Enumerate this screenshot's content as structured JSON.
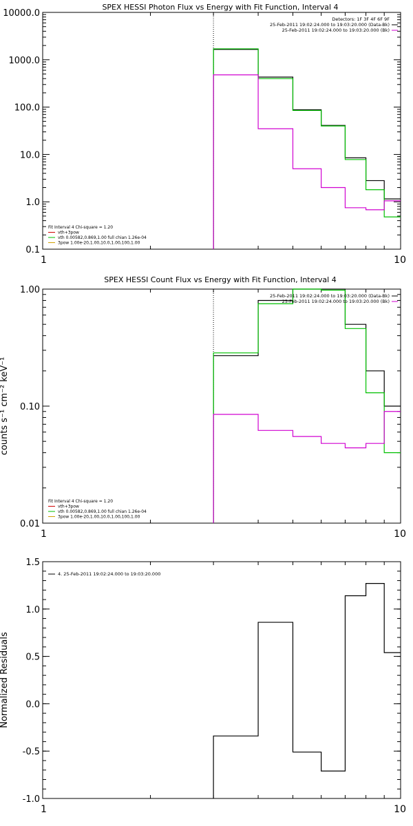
{
  "chart_data": [
    {
      "type": "line",
      "title": "SPEX HESSI Photon Flux vs Energy with Fit Function, Interval 4",
      "xlabel": "",
      "ylabel": "",
      "xscale": "log",
      "yscale": "log",
      "xlim": [
        1,
        10
      ],
      "ylim": [
        0.1,
        10000
      ],
      "xticks": [
        "1",
        "10"
      ],
      "yticks": [
        "0.1",
        "1.0",
        "10.0",
        "100.0",
        "1000.0",
        "10000.0"
      ],
      "vline_x": 3,
      "bin_edges": [
        3,
        4,
        5,
        6,
        7,
        8,
        9,
        10
      ],
      "series": [
        {
          "color": "#000000",
          "values": [
            1650,
            430,
            88,
            41,
            8.5,
            2.8,
            1.15
          ]
        },
        {
          "color": "#00c000",
          "values": [
            1700,
            400,
            85,
            40,
            7.8,
            1.8,
            0.48
          ]
        },
        {
          "color": "#d000d0",
          "values": [
            480,
            35,
            5,
            2,
            0.75,
            0.68,
            1.05
          ]
        }
      ],
      "legend_right": [
        {
          "text": "Detectors: 1F 3F 4F 6F 9F",
          "color": "#000000"
        },
        {
          "text": "25-Feb-2011 19:02:24.000 to 19:03:20.000 (Data-Bk)",
          "color": "#000000"
        },
        {
          "text": "25-Feb-2011 19:02:24.000 to 19:03:20.000 (Bk)",
          "color": "#d000d0"
        }
      ],
      "legend_left": [
        {
          "text": "Fit Interval  4   Chi-square = 1.20",
          "color": "#000000"
        },
        {
          "text": "vth+3pow",
          "color": "#d00000"
        },
        {
          "text": "vth 0.00582,0.869,1.00   full chian 1.26e-04",
          "color": "#00c000"
        },
        {
          "text": "3pow 1.00e-20,1.00,10.0,1.00,100,1.00",
          "color": "#d0a000"
        }
      ]
    },
    {
      "type": "line",
      "title": "SPEX HESSI Count Flux vs Energy with Fit Function, Interval 4",
      "xlabel": "",
      "ylabel": "counts s⁻¹ cm⁻² keV⁻¹",
      "xscale": "log",
      "yscale": "log",
      "xlim": [
        1,
        10
      ],
      "ylim": [
        0.01,
        1
      ],
      "xticks": [
        "1",
        "10"
      ],
      "yticks": [
        "0.01",
        "0.10",
        "1.00"
      ],
      "vline_x": 3,
      "bin_edges": [
        3,
        4,
        5,
        6,
        7,
        8,
        9,
        10
      ],
      "series": [
        {
          "color": "#000000",
          "values": [
            0.27,
            0.8,
            1.05,
            1.0,
            0.5,
            0.2,
            0.1
          ]
        },
        {
          "color": "#00c000",
          "values": [
            0.285,
            0.75,
            1.02,
            0.98,
            0.46,
            0.13,
            0.04
          ]
        },
        {
          "color": "#d000d0",
          "values": [
            0.085,
            0.062,
            0.055,
            0.048,
            0.044,
            0.048,
            0.09
          ]
        }
      ],
      "legend_right": [
        {
          "text": "25-Feb-2011 19:02:24.000 to 19:03:20.000 (Data-Bk)",
          "color": "#000000"
        },
        {
          "text": "25-Feb-2011 19:02:24.000 to 19:03:20.000 (Bk)",
          "color": "#d000d0"
        }
      ],
      "legend_left": [
        {
          "text": "Fit Interval  4   Chi-square = 1.20",
          "color": "#000000"
        },
        {
          "text": "vth+3pow",
          "color": "#d00000"
        },
        {
          "text": "vth 0.00582,0.869,1.00   full chian 1.26e-04",
          "color": "#00c000"
        },
        {
          "text": "3pow 1.00e-20,1.00,10.0,1.00,100,1.00",
          "color": "#d0a000"
        }
      ]
    },
    {
      "type": "line",
      "title": "",
      "xlabel": "",
      "ylabel": "Normalized Residuals",
      "xscale": "log",
      "yscale": "linear",
      "xlim": [
        1,
        10
      ],
      "ylim": [
        -1.0,
        1.5
      ],
      "xticks": [
        "1",
        "10"
      ],
      "yticks": [
        "-1.0",
        "-0.5",
        "0.0",
        "0.5",
        "1.0",
        "1.5"
      ],
      "bin_edges": [
        3,
        4,
        5,
        6,
        7,
        8,
        9,
        10
      ],
      "series": [
        {
          "color": "#000000",
          "values": [
            -0.34,
            0.86,
            -0.51,
            -0.71,
            1.14,
            1.27,
            0.54
          ]
        }
      ],
      "legend_left": [
        {
          "text": "4. 25-Feb-2011 19:02:24.000 to 19:03:20.000",
          "color": "#000000"
        }
      ]
    }
  ]
}
